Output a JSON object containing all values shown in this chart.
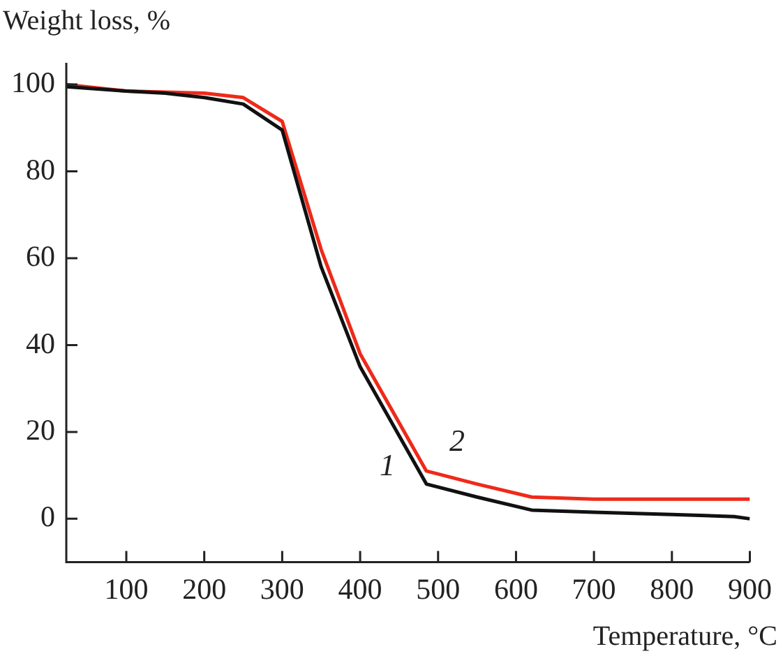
{
  "chart_data": {
    "type": "line",
    "xlabel": "Temperature, °C",
    "ylabel": "Weight loss, %",
    "xlim": [
      23,
      900
    ],
    "xticks": [
      100,
      200,
      300,
      400,
      500,
      600,
      700,
      800,
      900
    ],
    "ylim": [
      -10,
      105
    ],
    "yticks": [
      0,
      20,
      40,
      60,
      80,
      100
    ],
    "grid": false,
    "legend": false,
    "marker": "none",
    "line_style": "solid",
    "series": [
      {
        "name": "1",
        "color": "#111111",
        "x": [
          23,
          100,
          150,
          200,
          250,
          300,
          350,
          400,
          485,
          550,
          620,
          700,
          800,
          880,
          900
        ],
        "values": [
          99.5,
          98.5,
          98,
          97,
          95.5,
          89.5,
          58,
          35,
          8,
          5,
          2,
          1.5,
          1,
          0.5,
          0
        ]
      },
      {
        "name": "2",
        "color": "#ee2a1a",
        "x": [
          23,
          100,
          200,
          250,
          300,
          350,
          400,
          485,
          550,
          620,
          700,
          800,
          900
        ],
        "values": [
          100,
          98.5,
          98,
          97,
          91.5,
          62,
          38,
          11,
          8,
          5,
          4.5,
          4.5,
          4.5
        ]
      }
    ]
  }
}
